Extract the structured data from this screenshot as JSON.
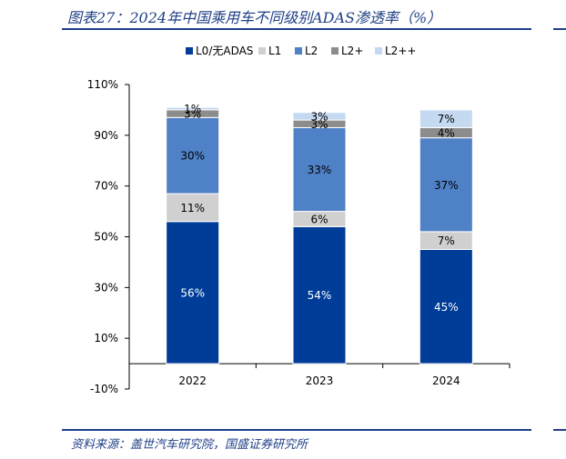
{
  "header": {
    "title": "图表27：2024年中国乘用车不同级别ADAS渗透率（%）"
  },
  "footer": {
    "source": "资料来源：盖世汽车研究院，国盛证券研究所"
  },
  "chart_data": {
    "type": "bar",
    "stacked": true,
    "categories": [
      "2022",
      "2023",
      "2024"
    ],
    "series": [
      {
        "name": "L0/无ADAS",
        "color": "#003d99",
        "values": [
          56,
          54,
          45
        ],
        "labels": [
          "56%",
          "54%",
          "45%"
        ],
        "label_color": "#ffffff"
      },
      {
        "name": "L1",
        "color": "#d0d0d0",
        "values": [
          11,
          6,
          7
        ],
        "labels": [
          "11%",
          "6%",
          "7%"
        ],
        "label_color": "#000000"
      },
      {
        "name": "L2",
        "color": "#4f81c7",
        "values": [
          30,
          33,
          37
        ],
        "labels": [
          "30%",
          "33%",
          "37%"
        ],
        "label_color": "#000000"
      },
      {
        "name": "L2+",
        "color": "#8c8c8c",
        "values": [
          3,
          3,
          4
        ],
        "labels": [
          "3%",
          "3%",
          "4%"
        ],
        "label_color": "#000000"
      },
      {
        "name": "L2++",
        "color": "#c5d9f1",
        "values": [
          1,
          3,
          7
        ],
        "labels": [
          "1%",
          "3%",
          "7%"
        ],
        "label_color": "#000000"
      }
    ],
    "yticks": [
      "-10%",
      "10%",
      "30%",
      "50%",
      "70%",
      "90%",
      "110%"
    ],
    "ytick_values": [
      -10,
      10,
      30,
      50,
      70,
      90,
      110
    ],
    "ylim": [
      -10,
      110
    ],
    "xlabel": "",
    "ylabel": "",
    "grid": false,
    "legend_position": "top"
  }
}
